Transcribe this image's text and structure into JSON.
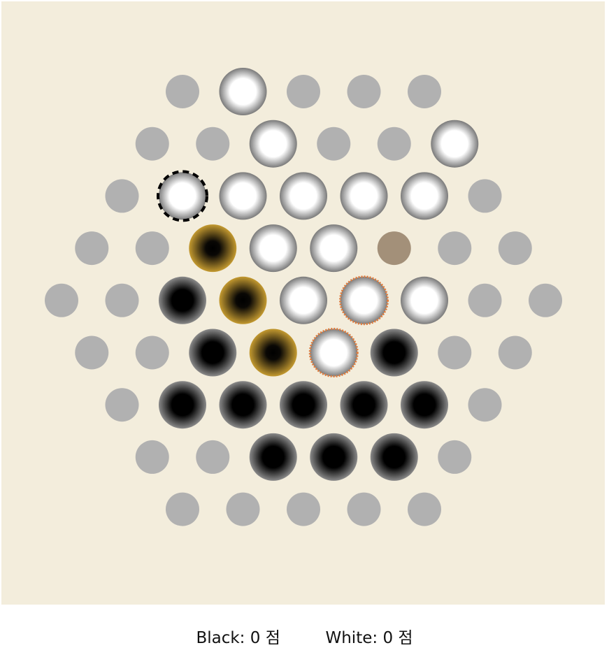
{
  "game": {
    "name": "Abalone",
    "colors": {
      "board_background": "#f3eddc",
      "empty_cell": "#b1b1b1",
      "target_cell": "#a39079",
      "selected_glow": "#b8902a",
      "last_move_dash": "#000000",
      "capture_ring": "#e07b3c"
    },
    "rows": [
      [
        "empty",
        "white",
        "empty",
        "empty",
        "empty"
      ],
      [
        "empty",
        "empty",
        "white",
        "empty",
        "empty",
        "white"
      ],
      [
        "empty",
        "white",
        "white",
        "white",
        "white",
        "white",
        "empty"
      ],
      [
        "empty",
        "empty",
        "black",
        "white",
        "white",
        "target",
        "empty",
        "empty"
      ],
      [
        "empty",
        "empty",
        "black",
        "black",
        "white",
        "white",
        "white",
        "empty",
        "empty"
      ],
      [
        "empty",
        "empty",
        "black",
        "black",
        "white",
        "black",
        "empty",
        "empty"
      ],
      [
        "empty",
        "black",
        "black",
        "black",
        "black",
        "black",
        "empty"
      ],
      [
        "empty",
        "empty",
        "black",
        "black",
        "black",
        "empty"
      ],
      [
        "empty",
        "empty",
        "empty",
        "empty",
        "empty"
      ]
    ],
    "highlights": {
      "selected": [
        [
          3,
          2
        ],
        [
          4,
          3
        ],
        [
          5,
          3
        ]
      ],
      "last_move": [
        [
          2,
          1
        ]
      ],
      "capture_target": [
        [
          4,
          5
        ],
        [
          5,
          4
        ]
      ]
    }
  },
  "score": {
    "black_label": "Black:",
    "black_value": "0",
    "white_label": "White:",
    "white_value": "0",
    "unit": "점"
  }
}
